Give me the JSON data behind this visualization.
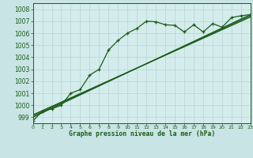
{
  "title": "Graphe pression niveau de la mer (hPa)",
  "background_color": "#c8e4e4",
  "plot_bg_color": "#d4ecec",
  "grid_color": "#b8d4d4",
  "line_color": "#1a5c1a",
  "xlim": [
    0,
    23
  ],
  "ylim": [
    998.5,
    1008.5
  ],
  "yticks": [
    999,
    1000,
    1001,
    1002,
    1003,
    1004,
    1005,
    1006,
    1007,
    1008
  ],
  "xticks": [
    0,
    1,
    2,
    3,
    4,
    5,
    6,
    7,
    8,
    9,
    10,
    11,
    12,
    13,
    14,
    15,
    16,
    17,
    18,
    19,
    20,
    21,
    22,
    23
  ],
  "series": {
    "main": {
      "x": [
        0,
        1,
        2,
        3,
        4,
        5,
        6,
        7,
        8,
        9,
        10,
        11,
        12,
        13,
        14,
        15,
        16,
        17,
        18,
        19,
        20,
        21,
        22,
        23
      ],
      "y": [
        998.7,
        999.5,
        999.7,
        1000.0,
        1001.0,
        1001.3,
        1002.5,
        1003.0,
        1004.6,
        1005.4,
        1006.0,
        1006.4,
        1007.0,
        1006.95,
        1006.7,
        1006.65,
        1006.1,
        1006.7,
        1006.1,
        1006.8,
        1006.5,
        1007.3,
        1007.45,
        1007.55
      ]
    },
    "linear1": {
      "x": [
        0,
        23
      ],
      "y": [
        999.0,
        1007.55
      ]
    },
    "linear2": {
      "x": [
        0,
        23
      ],
      "y": [
        999.1,
        1007.45
      ]
    },
    "linear3": {
      "x": [
        0,
        23
      ],
      "y": [
        999.2,
        1007.35
      ]
    }
  }
}
